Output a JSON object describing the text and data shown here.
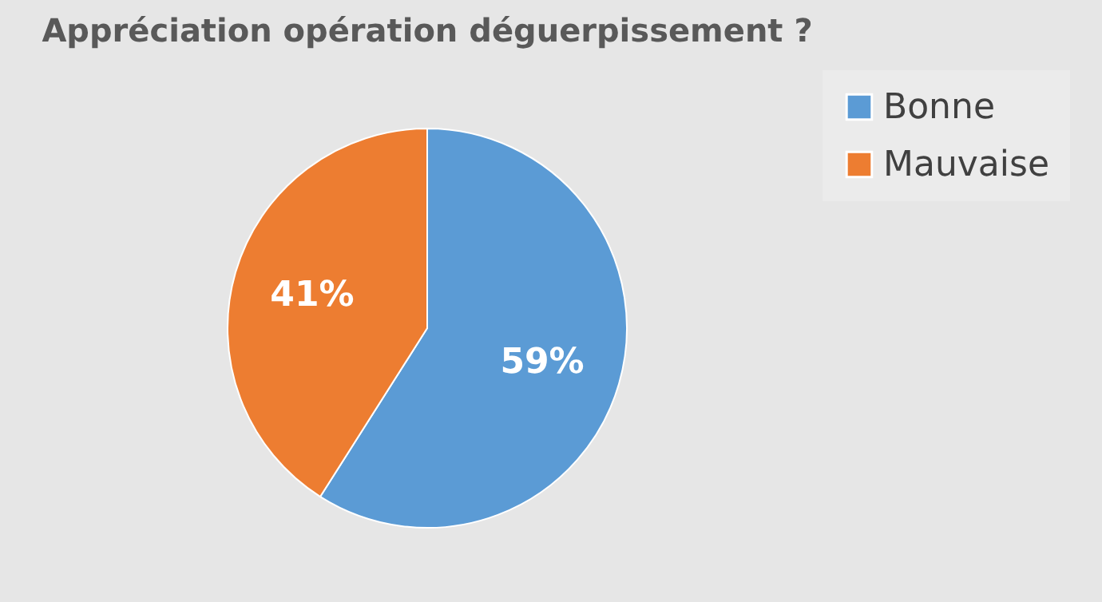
{
  "chart_data": {
    "type": "pie",
    "title": "Appréciation opération déguerpissement ?",
    "categories": [
      "Bonne",
      "Mauvaise"
    ],
    "values": [
      59,
      41
    ],
    "colors": [
      "#5b9bd5",
      "#ed7d31"
    ],
    "value_labels": [
      "59%",
      "41%"
    ],
    "legend": "right"
  }
}
